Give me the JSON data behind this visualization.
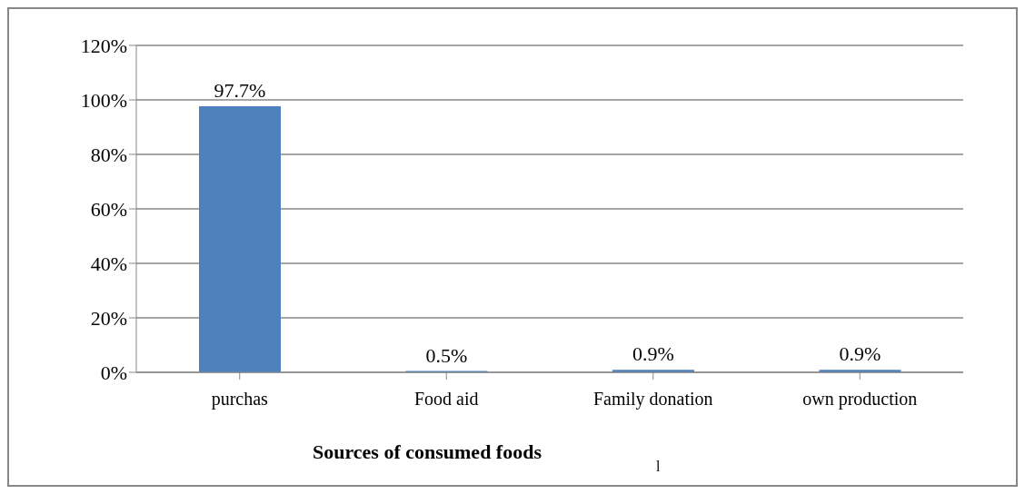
{
  "chart_data": {
    "type": "bar",
    "xlabel": "Sources of  consumed foods",
    "categories": [
      "purchas",
      "Food aid",
      "Family donation",
      "own production"
    ],
    "values": [
      97.7,
      0.5,
      0.9,
      0.9
    ],
    "color": "#4f81bd",
    "value_labels": [
      "97.7%",
      "0.5%",
      "0.9%",
      "0.9%"
    ],
    "ylim": [
      0,
      120
    ],
    "yticks": [
      {
        "value": 0,
        "label": "0%"
      },
      {
        "value": 20,
        "label": "20%"
      },
      {
        "value": 40,
        "label": "40%"
      },
      {
        "value": 60,
        "label": "60%"
      },
      {
        "value": 80,
        "label": "80%"
      },
      {
        "value": 100,
        "label": "100%"
      },
      {
        "value": 120,
        "label": "120%"
      }
    ],
    "grid": "y",
    "legend": false,
    "annotations": [
      "l"
    ]
  }
}
